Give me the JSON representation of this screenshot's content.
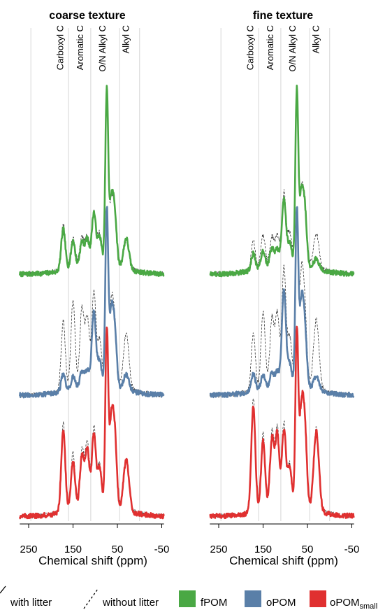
{
  "chart_data": {
    "type": "line",
    "panels": [
      {
        "title": "coarse texture",
        "xlabel": "Chemical shift (ppm)"
      },
      {
        "title": "fine texture",
        "xlabel": "Chemical shift (ppm)"
      }
    ],
    "x_axis": {
      "reversed": true,
      "xlim": [
        270,
        -55
      ],
      "ticks": [
        250,
        150,
        50,
        -50
      ],
      "tick_labels": [
        "250",
        "150",
        "50",
        "-50"
      ]
    },
    "region_lines_ppm": [
      245,
      160,
      110,
      45,
      0
    ],
    "region_labels": [
      {
        "text": "Carboxyl C",
        "ppm": 180
      },
      {
        "text": "Aromatic C",
        "ppm": 135
      },
      {
        "text": "O/N Alkyl C",
        "ppm": 85
      },
      {
        "text": "Alkyl C",
        "ppm": 32
      }
    ],
    "fractions": [
      {
        "name": "fPOM",
        "color": "#4aa844"
      },
      {
        "name": "oPOM",
        "color": "#5a7fa8"
      },
      {
        "name": "oPOM",
        "subscript": "small",
        "color": "#e03030"
      }
    ],
    "legend": {
      "with_litter": "with litter",
      "without_litter": "without litter",
      "placement": "bottom"
    },
    "peaks": {
      "coarse": {
        "fPOM": {
          "with": [
            [
              172,
              0.24
            ],
            [
              150,
              0.16
            ],
            [
              130,
              0.14
            ],
            [
              118,
              0.15
            ],
            [
              103,
              0.3
            ],
            [
              90,
              0.16
            ],
            [
              74,
              1.0
            ],
            [
              64,
              0.35
            ],
            [
              56,
              0.28
            ],
            [
              30,
              0.18
            ]
          ],
          "without": [
            [
              172,
              0.26
            ],
            [
              150,
              0.17
            ],
            [
              130,
              0.15
            ],
            [
              118,
              0.15
            ],
            [
              103,
              0.28
            ],
            [
              90,
              0.16
            ],
            [
              74,
              0.95
            ],
            [
              64,
              0.32
            ],
            [
              56,
              0.26
            ],
            [
              30,
              0.16
            ]
          ]
        },
        "oPOM": {
          "with": [
            [
              172,
              0.1
            ],
            [
              150,
              0.07
            ],
            [
              130,
              0.09
            ],
            [
              118,
              0.09
            ],
            [
              103,
              0.42
            ],
            [
              90,
              0.14
            ],
            [
              74,
              1.0
            ],
            [
              64,
              0.4
            ],
            [
              56,
              0.3
            ],
            [
              30,
              0.09
            ]
          ],
          "without": [
            [
              172,
              0.4
            ],
            [
              150,
              0.5
            ],
            [
              130,
              0.44
            ],
            [
              118,
              0.38
            ],
            [
              103,
              0.52
            ],
            [
              90,
              0.24
            ],
            [
              74,
              0.95
            ],
            [
              64,
              0.42
            ],
            [
              56,
              0.32
            ],
            [
              30,
              0.32
            ]
          ]
        },
        "oPOM_small": {
          "with": [
            [
              172,
              0.48
            ],
            [
              150,
              0.28
            ],
            [
              130,
              0.3
            ],
            [
              118,
              0.34
            ],
            [
              103,
              0.42
            ],
            [
              90,
              0.22
            ],
            [
              74,
              1.0
            ],
            [
              64,
              0.46
            ],
            [
              56,
              0.4
            ],
            [
              30,
              0.3
            ]
          ],
          "without": [
            [
              172,
              0.52
            ],
            [
              150,
              0.32
            ],
            [
              130,
              0.32
            ],
            [
              118,
              0.36
            ],
            [
              103,
              0.44
            ],
            [
              90,
              0.22
            ],
            [
              74,
              0.95
            ],
            [
              64,
              0.44
            ],
            [
              56,
              0.38
            ],
            [
              30,
              0.28
            ]
          ]
        }
      },
      "fine": {
        "fPOM": {
          "with": [
            [
              172,
              0.1
            ],
            [
              150,
              0.1
            ],
            [
              130,
              0.1
            ],
            [
              118,
              0.09
            ],
            [
              103,
              0.38
            ],
            [
              90,
              0.12
            ],
            [
              74,
              1.0
            ],
            [
              64,
              0.38
            ],
            [
              56,
              0.3
            ],
            [
              30,
              0.06
            ]
          ],
          "without": [
            [
              172,
              0.16
            ],
            [
              150,
              0.18
            ],
            [
              130,
              0.15
            ],
            [
              118,
              0.15
            ],
            [
              103,
              0.4
            ],
            [
              90,
              0.16
            ],
            [
              74,
              0.95
            ],
            [
              64,
              0.38
            ],
            [
              56,
              0.3
            ],
            [
              30,
              0.2
            ]
          ]
        },
        "oPOM": {
          "with": [
            [
              172,
              0.1
            ],
            [
              150,
              0.08
            ],
            [
              130,
              0.08
            ],
            [
              118,
              0.08
            ],
            [
              103,
              0.55
            ],
            [
              90,
              0.12
            ],
            [
              74,
              1.0
            ],
            [
              64,
              0.45
            ],
            [
              56,
              0.32
            ],
            [
              30,
              0.08
            ]
          ],
          "without": [
            [
              172,
              0.32
            ],
            [
              150,
              0.44
            ],
            [
              130,
              0.38
            ],
            [
              118,
              0.4
            ],
            [
              103,
              0.66
            ],
            [
              90,
              0.26
            ],
            [
              74,
              0.95
            ],
            [
              64,
              0.58
            ],
            [
              56,
              0.4
            ],
            [
              30,
              0.4
            ]
          ]
        },
        "oPOM_small": {
          "with": [
            [
              172,
              0.62
            ],
            [
              150,
              0.4
            ],
            [
              130,
              0.4
            ],
            [
              118,
              0.42
            ],
            [
              103,
              0.44
            ],
            [
              90,
              0.22
            ],
            [
              74,
              1.0
            ],
            [
              64,
              0.52
            ],
            [
              56,
              0.44
            ],
            [
              30,
              0.46
            ]
          ],
          "without": [
            [
              172,
              0.66
            ],
            [
              150,
              0.44
            ],
            [
              130,
              0.42
            ],
            [
              118,
              0.44
            ],
            [
              103,
              0.46
            ],
            [
              90,
              0.22
            ],
            [
              74,
              0.95
            ],
            [
              64,
              0.5
            ],
            [
              56,
              0.42
            ],
            [
              30,
              0.48
            ]
          ]
        }
      }
    }
  }
}
